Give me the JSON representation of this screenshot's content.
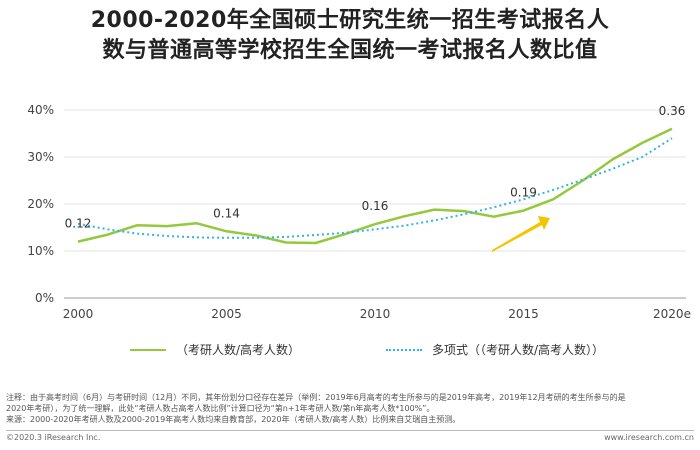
{
  "title": {
    "line1": "2000-2020年全国硕士研究生统一招生考试报名人",
    "line2": "数与普通高等学校招生全国统一考试报名人数比值"
  },
  "chart_data": {
    "type": "line",
    "title": "2000-2020年全国硕士研究生统一招生考试报名人数与普通高等学校招生全国统一考试报名人数比值",
    "ylim": [
      0,
      0.4
    ],
    "y_ticks": [
      "0%",
      "10%",
      "20%",
      "30%",
      "40%"
    ],
    "x_ticks": [
      "2000",
      "2005",
      "2010",
      "2015",
      "2020e"
    ],
    "series": [
      {
        "name": "（考研人数/高考人数）",
        "color": "#94c83d",
        "x": [
          2000,
          2001,
          2002,
          2003,
          2004,
          2005,
          2006,
          2007,
          2008,
          2009,
          2010,
          2011,
          2012,
          2013,
          2014,
          2015,
          2016,
          2017,
          2018,
          2019,
          2020
        ],
        "values": [
          0.12,
          0.135,
          0.155,
          0.153,
          0.159,
          0.142,
          0.133,
          0.118,
          0.117,
          0.136,
          0.157,
          0.174,
          0.188,
          0.185,
          0.173,
          0.186,
          0.21,
          0.25,
          0.295,
          0.33,
          0.36
        ]
      },
      {
        "name": "多项式（（考研人数/高考人数））",
        "color": "#2fb4e6",
        "style": "dotted",
        "x": [
          2000,
          2001,
          2002,
          2003,
          2004,
          2005,
          2006,
          2007,
          2008,
          2009,
          2010,
          2011,
          2012,
          2013,
          2014,
          2015,
          2016,
          2017,
          2018,
          2019,
          2020
        ],
        "values": [
          0.158,
          0.146,
          0.137,
          0.132,
          0.129,
          0.128,
          0.128,
          0.13,
          0.134,
          0.139,
          0.146,
          0.154,
          0.165,
          0.178,
          0.193,
          0.21,
          0.23,
          0.252,
          0.275,
          0.3,
          0.34
        ]
      }
    ],
    "data_labels": [
      {
        "x": 2000,
        "y": 0.12,
        "text": "0.12"
      },
      {
        "x": 2005,
        "y": 0.142,
        "text": "0.14"
      },
      {
        "x": 2010,
        "y": 0.157,
        "text": "0.16"
      },
      {
        "x": 2015,
        "y": 0.186,
        "text": "0.19"
      },
      {
        "x": 2020,
        "y": 0.36,
        "text": "0.36"
      }
    ],
    "grid": true,
    "grid_color": "#e3e3e3",
    "arrow_color": "#f5c400"
  },
  "legend": {
    "series1": "（考研人数/高考人数）",
    "series2": "多项式（（考研人数/高考人数））"
  },
  "note": {
    "line1": "注释：由于高考时间（6月）与考研时间（12月）不同，其年份划分口径存在差异（举例：2019年6月高考的考生所参与的是2019年高考，2019年12月考研的考生所参与的是",
    "line2": "2020年考研），为了统一理解，此处“考研人数占高考人数比例”计算口径为“第n+1年考研人数/第n年高考人数*100%”。",
    "line3": "来源：2000-2020年考研人数及2000-2019年高考人数均来自教育部，2020年（考研人数/高考人数）比例来自艾瑞自主预测。"
  },
  "footer": {
    "copyright": "©2020.3 iResearch Inc.",
    "website": "www.iresearch.com.cn"
  }
}
